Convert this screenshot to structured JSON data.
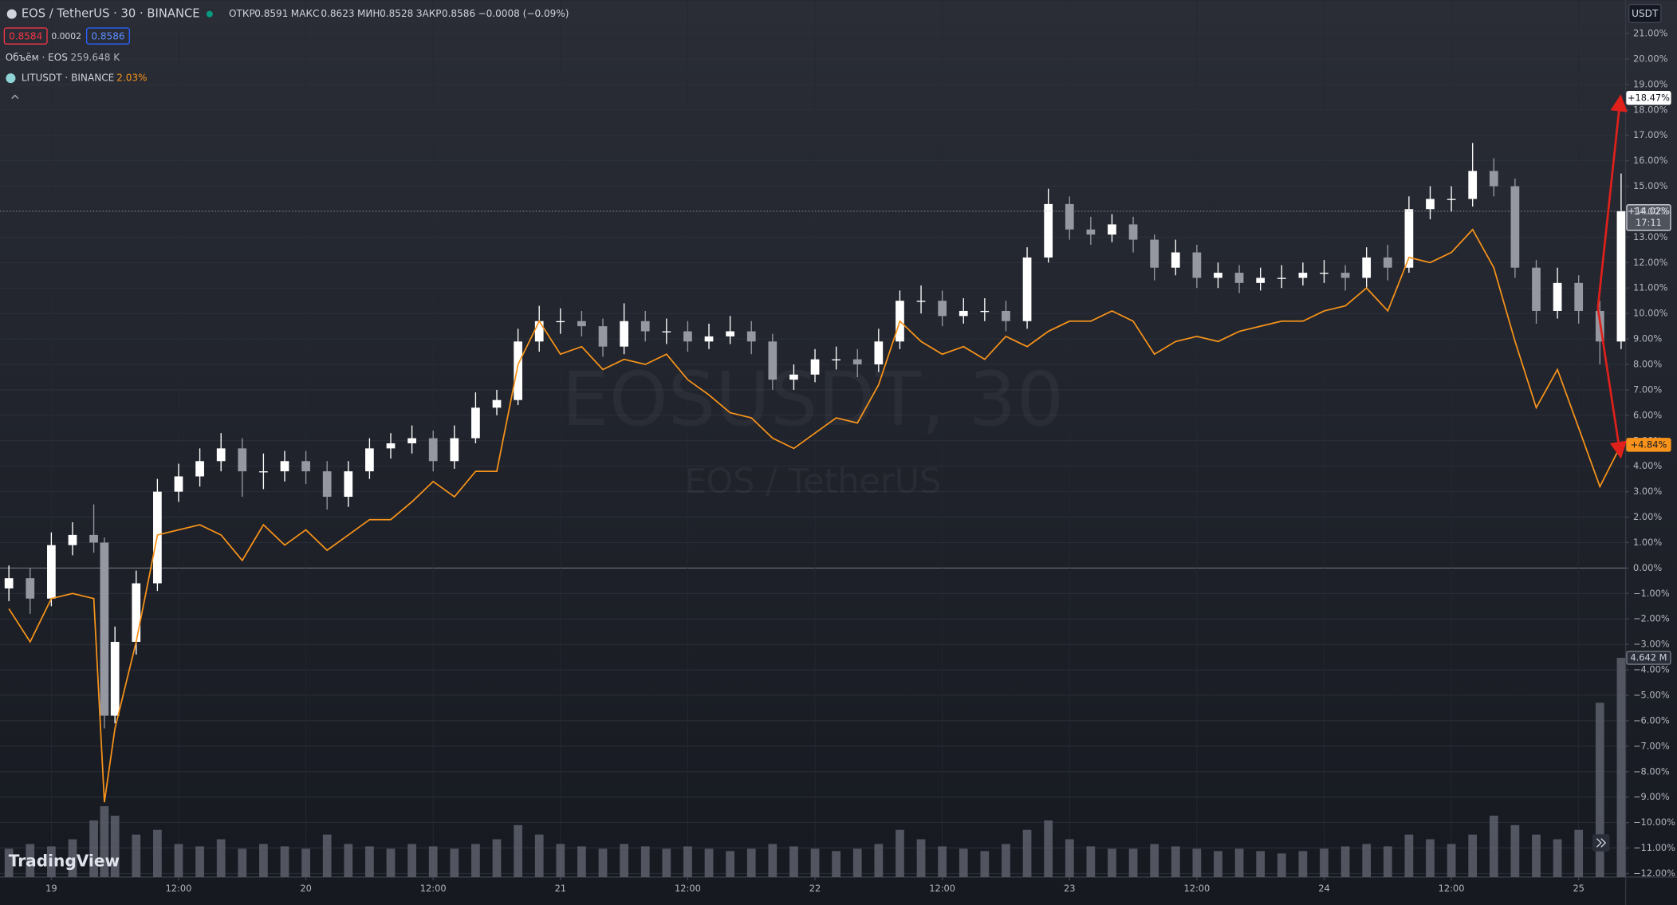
{
  "header": {
    "symbol": "EOS / TetherUS · 30 · BINANCE",
    "ohlc": [
      {
        "label": "ОТКР",
        "value": "0.8591"
      },
      {
        "label": "МАКС",
        "value": "0.8623"
      },
      {
        "label": "МИН",
        "value": "0.8528"
      },
      {
        "label": "ЗАКР",
        "value": "0.8586"
      }
    ],
    "change": "−0.0008 (−0.09%)",
    "bid": "0.8584",
    "spread": "0.0002",
    "ask": "0.8586",
    "volume_legend": "Объём · EOS",
    "volume_value": "259.648 K",
    "compare_legend": "LITUSDT · BINANCE",
    "compare_value": "2.03%",
    "currency": "USDT",
    "brand": "TradingView"
  },
  "chart_data": {
    "type": "candlestick",
    "title": "EOS / TetherUS · 30 · BINANCE",
    "watermark": [
      "EOSUSDT, 30",
      "EOS / TetherUS"
    ],
    "up_color": "#ffffff",
    "down_color": "#9598a1",
    "x": [
      -4,
      -2,
      0,
      2,
      4,
      5,
      6,
      8,
      10,
      12,
      14,
      16,
      18,
      20,
      22,
      24,
      26,
      28,
      30,
      32,
      34,
      36,
      38,
      40,
      42,
      44,
      46,
      48,
      50,
      52,
      54,
      56,
      58,
      60,
      62,
      64,
      66,
      68,
      70,
      72,
      74,
      76,
      78,
      80,
      82,
      84,
      86,
      88,
      90,
      92,
      94,
      96,
      98,
      100,
      102,
      104,
      106,
      108,
      110,
      112,
      114,
      116,
      118,
      120,
      122,
      124,
      126,
      128,
      130,
      132,
      134,
      136,
      138,
      140,
      142,
      144,
      146,
      148
    ],
    "open": [
      -0.8,
      -0.4,
      -1.2,
      0.9,
      1.3,
      1.0,
      -5.8,
      -2.9,
      -0.6,
      3.0,
      3.6,
      4.2,
      4.7,
      3.8,
      3.8,
      4.2,
      3.8,
      2.8,
      3.8,
      4.7,
      4.9,
      5.1,
      4.2,
      5.1,
      6.3,
      6.6,
      8.9,
      9.7,
      9.7,
      9.5,
      8.7,
      9.7,
      9.3,
      9.3,
      8.9,
      9.1,
      9.3,
      8.9,
      7.4,
      7.6,
      8.2,
      8.2,
      8.0,
      8.9,
      10.5,
      10.5,
      9.9,
      10.1,
      10.1,
      9.7,
      12.2,
      14.3,
      13.3,
      13.1,
      13.5,
      12.9,
      11.8,
      12.4,
      11.4,
      11.6,
      11.2,
      11.4,
      11.4,
      11.6,
      11.6,
      11.4,
      12.2,
      11.8,
      14.1,
      14.5,
      14.5,
      15.6,
      15.0,
      11.8,
      10.1,
      11.2,
      10.1,
      8.9
    ],
    "high": [
      0.1,
      0.0,
      1.4,
      1.8,
      2.5,
      1.2,
      -2.3,
      -0.1,
      3.5,
      4.1,
      4.7,
      5.3,
      5.1,
      4.5,
      4.6,
      4.6,
      4.2,
      4.2,
      5.1,
      5.3,
      5.6,
      5.4,
      5.6,
      6.9,
      7.0,
      9.4,
      10.3,
      10.2,
      10.1,
      9.8,
      10.4,
      10.1,
      9.8,
      9.7,
      9.6,
      9.9,
      9.7,
      9.2,
      8.0,
      8.6,
      8.7,
      8.6,
      9.4,
      10.9,
      11.1,
      10.9,
      10.6,
      10.6,
      10.5,
      12.6,
      14.9,
      14.6,
      13.8,
      13.9,
      13.8,
      13.1,
      12.9,
      12.7,
      12.0,
      11.9,
      11.8,
      11.9,
      12.0,
      12.1,
      11.9,
      12.6,
      12.7,
      14.6,
      15.0,
      15.0,
      16.7,
      16.1,
      15.3,
      12.1,
      11.8,
      11.5,
      10.5,
      15.5
    ],
    "low": [
      -1.3,
      -1.8,
      -1.5,
      0.5,
      0.6,
      -6.3,
      -6.1,
      -3.4,
      -0.9,
      2.6,
      3.2,
      3.8,
      2.8,
      3.1,
      3.4,
      3.3,
      2.3,
      2.4,
      3.5,
      4.3,
      4.5,
      3.8,
      3.9,
      4.9,
      6.0,
      6.4,
      8.5,
      9.2,
      9.1,
      8.3,
      8.4,
      8.9,
      8.8,
      8.5,
      8.6,
      8.8,
      8.4,
      7.0,
      7.0,
      7.3,
      7.8,
      7.5,
      7.7,
      8.6,
      10.0,
      9.5,
      9.6,
      9.7,
      9.3,
      9.4,
      12.0,
      12.9,
      12.7,
      12.8,
      12.4,
      11.3,
      11.5,
      11.0,
      11.0,
      10.8,
      10.9,
      11.0,
      11.1,
      11.2,
      10.9,
      11.0,
      11.3,
      11.6,
      13.7,
      14.0,
      14.2,
      14.6,
      11.4,
      9.6,
      9.8,
      9.6,
      8.0,
      8.6
    ],
    "close": [
      -0.4,
      -1.2,
      0.9,
      1.3,
      1.0,
      -5.8,
      -2.9,
      -0.6,
      3.0,
      3.6,
      4.2,
      4.7,
      3.8,
      3.8,
      4.2,
      3.8,
      2.8,
      3.8,
      4.7,
      4.9,
      5.1,
      4.2,
      5.1,
      6.3,
      6.6,
      8.9,
      9.7,
      9.7,
      9.5,
      8.7,
      9.7,
      9.3,
      9.3,
      8.9,
      9.1,
      9.3,
      8.9,
      7.4,
      7.6,
      8.2,
      8.2,
      8.0,
      8.9,
      10.5,
      10.5,
      9.9,
      10.1,
      10.1,
      9.7,
      12.2,
      14.3,
      13.3,
      13.1,
      13.5,
      12.9,
      11.8,
      12.4,
      11.4,
      11.6,
      11.2,
      11.4,
      11.4,
      11.6,
      11.6,
      11.4,
      12.2,
      11.8,
      14.1,
      14.5,
      14.5,
      15.6,
      15.0,
      11.8,
      10.1,
      11.2,
      10.1,
      8.9,
      14.02
    ],
    "series": [
      {
        "name": "LITUSDT · BINANCE",
        "color": "#f7931a",
        "values": [
          -1.6,
          -2.9,
          -1.2,
          -1.0,
          -1.2,
          -9.2,
          -6.3,
          -2.9,
          1.3,
          1.5,
          1.7,
          1.3,
          0.3,
          1.7,
          0.9,
          1.5,
          0.7,
          1.3,
          1.9,
          1.9,
          2.6,
          3.4,
          2.8,
          3.8,
          3.8,
          8.0,
          9.7,
          8.4,
          8.7,
          7.8,
          8.2,
          8.0,
          8.4,
          7.4,
          6.8,
          6.1,
          5.9,
          5.1,
          4.7,
          5.3,
          5.9,
          5.7,
          7.2,
          9.7,
          8.9,
          8.4,
          8.7,
          8.2,
          9.1,
          8.7,
          9.3,
          9.7,
          9.7,
          10.1,
          9.7,
          8.4,
          8.9,
          9.1,
          8.9,
          9.3,
          9.5,
          9.7,
          9.7,
          10.1,
          10.3,
          11.0,
          10.1,
          12.2,
          12.0,
          12.4,
          13.3,
          11.8,
          8.9,
          6.3,
          7.8,
          5.5,
          3.2,
          4.84
        ]
      }
    ],
    "volume": {
      "name": "Объём · EOS",
      "color": "#5d606b",
      "values": [
        600,
        700,
        650,
        800,
        1200,
        1500,
        1300,
        900,
        1000,
        700,
        650,
        800,
        600,
        700,
        650,
        600,
        900,
        700,
        650,
        600,
        700,
        650,
        600,
        700,
        800,
        1100,
        900,
        700,
        650,
        600,
        700,
        650,
        600,
        650,
        600,
        550,
        600,
        700,
        650,
        600,
        550,
        600,
        700,
        1000,
        800,
        650,
        600,
        550,
        700,
        1000,
        1200,
        800,
        650,
        600,
        600,
        700,
        650,
        600,
        550,
        600,
        550,
        500,
        550,
        600,
        650,
        700,
        650,
        900,
        800,
        700,
        900,
        1300,
        1100,
        900,
        800,
        1000,
        3690,
        4642
      ],
      "tag": {
        "value": 4642,
        "label": "4.642 M"
      }
    },
    "price_tags": [
      {
        "value": 18.47,
        "label": "+18.47%",
        "color": "#ffffff",
        "text_color": "#131722"
      },
      {
        "value": 14.02,
        "label": "+14.02%",
        "countdown": "17:11",
        "color": "#d1d4dc",
        "text_color": "#131722"
      },
      {
        "value": 4.84,
        "label": "+4.84%",
        "color": "#f7931a",
        "text_color": "#131722"
      }
    ],
    "xlim": [
      -4.84,
      148.43
    ],
    "xticks": [
      {
        "value": 0,
        "label": "19"
      },
      {
        "value": 12,
        "label": "12:00"
      },
      {
        "value": 24,
        "label": "20"
      },
      {
        "value": 36,
        "label": "12:00"
      },
      {
        "value": 48,
        "label": "21"
      },
      {
        "value": 60,
        "label": "12:00"
      },
      {
        "value": 72,
        "label": "22"
      },
      {
        "value": 84,
        "label": "12:00"
      },
      {
        "value": 96,
        "label": "23"
      },
      {
        "value": 108,
        "label": "12:00"
      },
      {
        "value": 120,
        "label": "24"
      },
      {
        "value": 132,
        "label": "12:00"
      },
      {
        "value": 144,
        "label": "25"
      }
    ],
    "ylim": [
      -12.14,
      22.31
    ],
    "yticks": [
      {
        "value": 21,
        "label": "21.00%"
      },
      {
        "value": 20,
        "label": "20.00%"
      },
      {
        "value": 19,
        "label": "19.00%"
      },
      {
        "value": 18,
        "label": "18.00%"
      },
      {
        "value": 17,
        "label": "17.00%"
      },
      {
        "value": 16,
        "label": "16.00%"
      },
      {
        "value": 15,
        "label": "15.00%"
      },
      {
        "value": 14,
        "label": "14.00%"
      },
      {
        "value": 13,
        "label": "13.00%"
      },
      {
        "value": 12,
        "label": "12.00%"
      },
      {
        "value": 11,
        "label": "11.00%"
      },
      {
        "value": 10,
        "label": "10.00%"
      },
      {
        "value": 9,
        "label": "9.00%"
      },
      {
        "value": 8,
        "label": "8.00%"
      },
      {
        "value": 7,
        "label": "7.00%"
      },
      {
        "value": 6,
        "label": "6.00%"
      },
      {
        "value": 5,
        "label": "5.00%"
      },
      {
        "value": 4,
        "label": "4.00%"
      },
      {
        "value": 3,
        "label": "3.00%"
      },
      {
        "value": 2,
        "label": "2.00%"
      },
      {
        "value": 1,
        "label": "1.00%"
      },
      {
        "value": 0,
        "label": "0.00%"
      },
      {
        "value": -1,
        "label": "−1.00%"
      },
      {
        "value": -2,
        "label": "−2.00%"
      },
      {
        "value": -3,
        "label": "−3.00%"
      },
      {
        "value": -4,
        "label": "−4.00%"
      },
      {
        "value": -5,
        "label": "−5.00%"
      },
      {
        "value": -6,
        "label": "−6.00%"
      },
      {
        "value": -7,
        "label": "−7.00%"
      },
      {
        "value": -8,
        "label": "−8.00%"
      },
      {
        "value": -9,
        "label": "−9.00%"
      },
      {
        "value": -10,
        "label": "−10.00%"
      },
      {
        "value": -11,
        "label": "−11.00%"
      },
      {
        "value": -12,
        "label": "−12.00%"
      }
    ],
    "grid": true
  }
}
